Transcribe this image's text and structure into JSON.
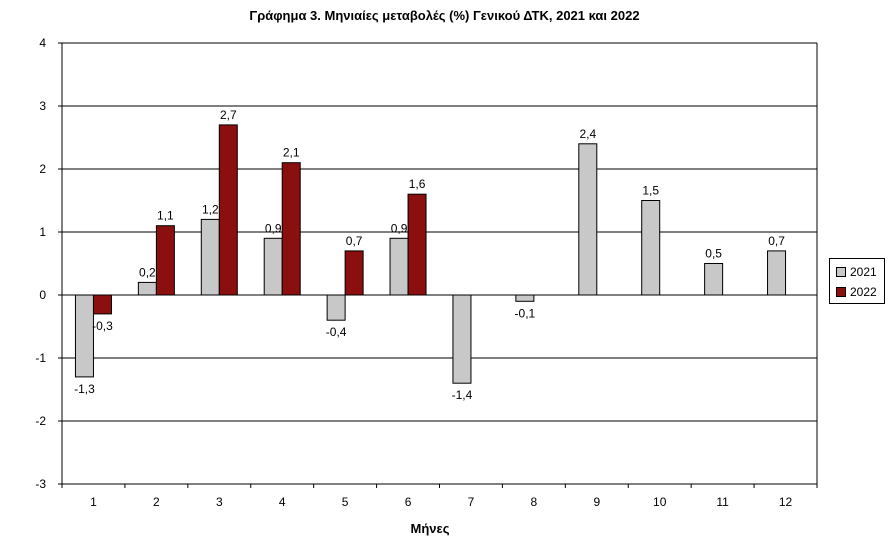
{
  "chart_data": {
    "type": "bar",
    "title": "Γράφημα 3. Μηνιαίες μεταβολές (%) Γενικού ΔΤΚ, 2021 και 2022",
    "xlabel": "Μήνες",
    "ylabel": "",
    "categories": [
      "1",
      "2",
      "3",
      "4",
      "5",
      "6",
      "7",
      "8",
      "9",
      "10",
      "11",
      "12"
    ],
    "ylim": [
      -3,
      4
    ],
    "yticks": [
      "4",
      "3",
      "2",
      "1",
      "0",
      "-1",
      "-2",
      "-3"
    ],
    "grid": true,
    "legend_position": "right",
    "series": [
      {
        "name": "2021",
        "color": "#c8c8c8",
        "values": [
          -1.3,
          0.2,
          1.2,
          0.9,
          -0.4,
          0.9,
          -1.4,
          -0.1,
          2.4,
          1.5,
          0.5,
          0.7
        ],
        "labels": [
          "-1,3",
          "0,2",
          "1,2",
          "0,9",
          "-0,4",
          "0,9",
          "-1,4",
          "-0,1",
          "2,4",
          "1,5",
          "0,5",
          "0,7"
        ]
      },
      {
        "name": "2022",
        "color": "#8b0f0f",
        "values": [
          -0.3,
          1.1,
          2.7,
          2.1,
          0.7,
          1.6,
          null,
          null,
          null,
          null,
          null,
          null
        ],
        "labels": [
          "-0,3",
          "1,1",
          "2,7",
          "2,1",
          "0,7",
          "1,6",
          "",
          "",
          "",
          "",
          "",
          ""
        ]
      }
    ]
  }
}
